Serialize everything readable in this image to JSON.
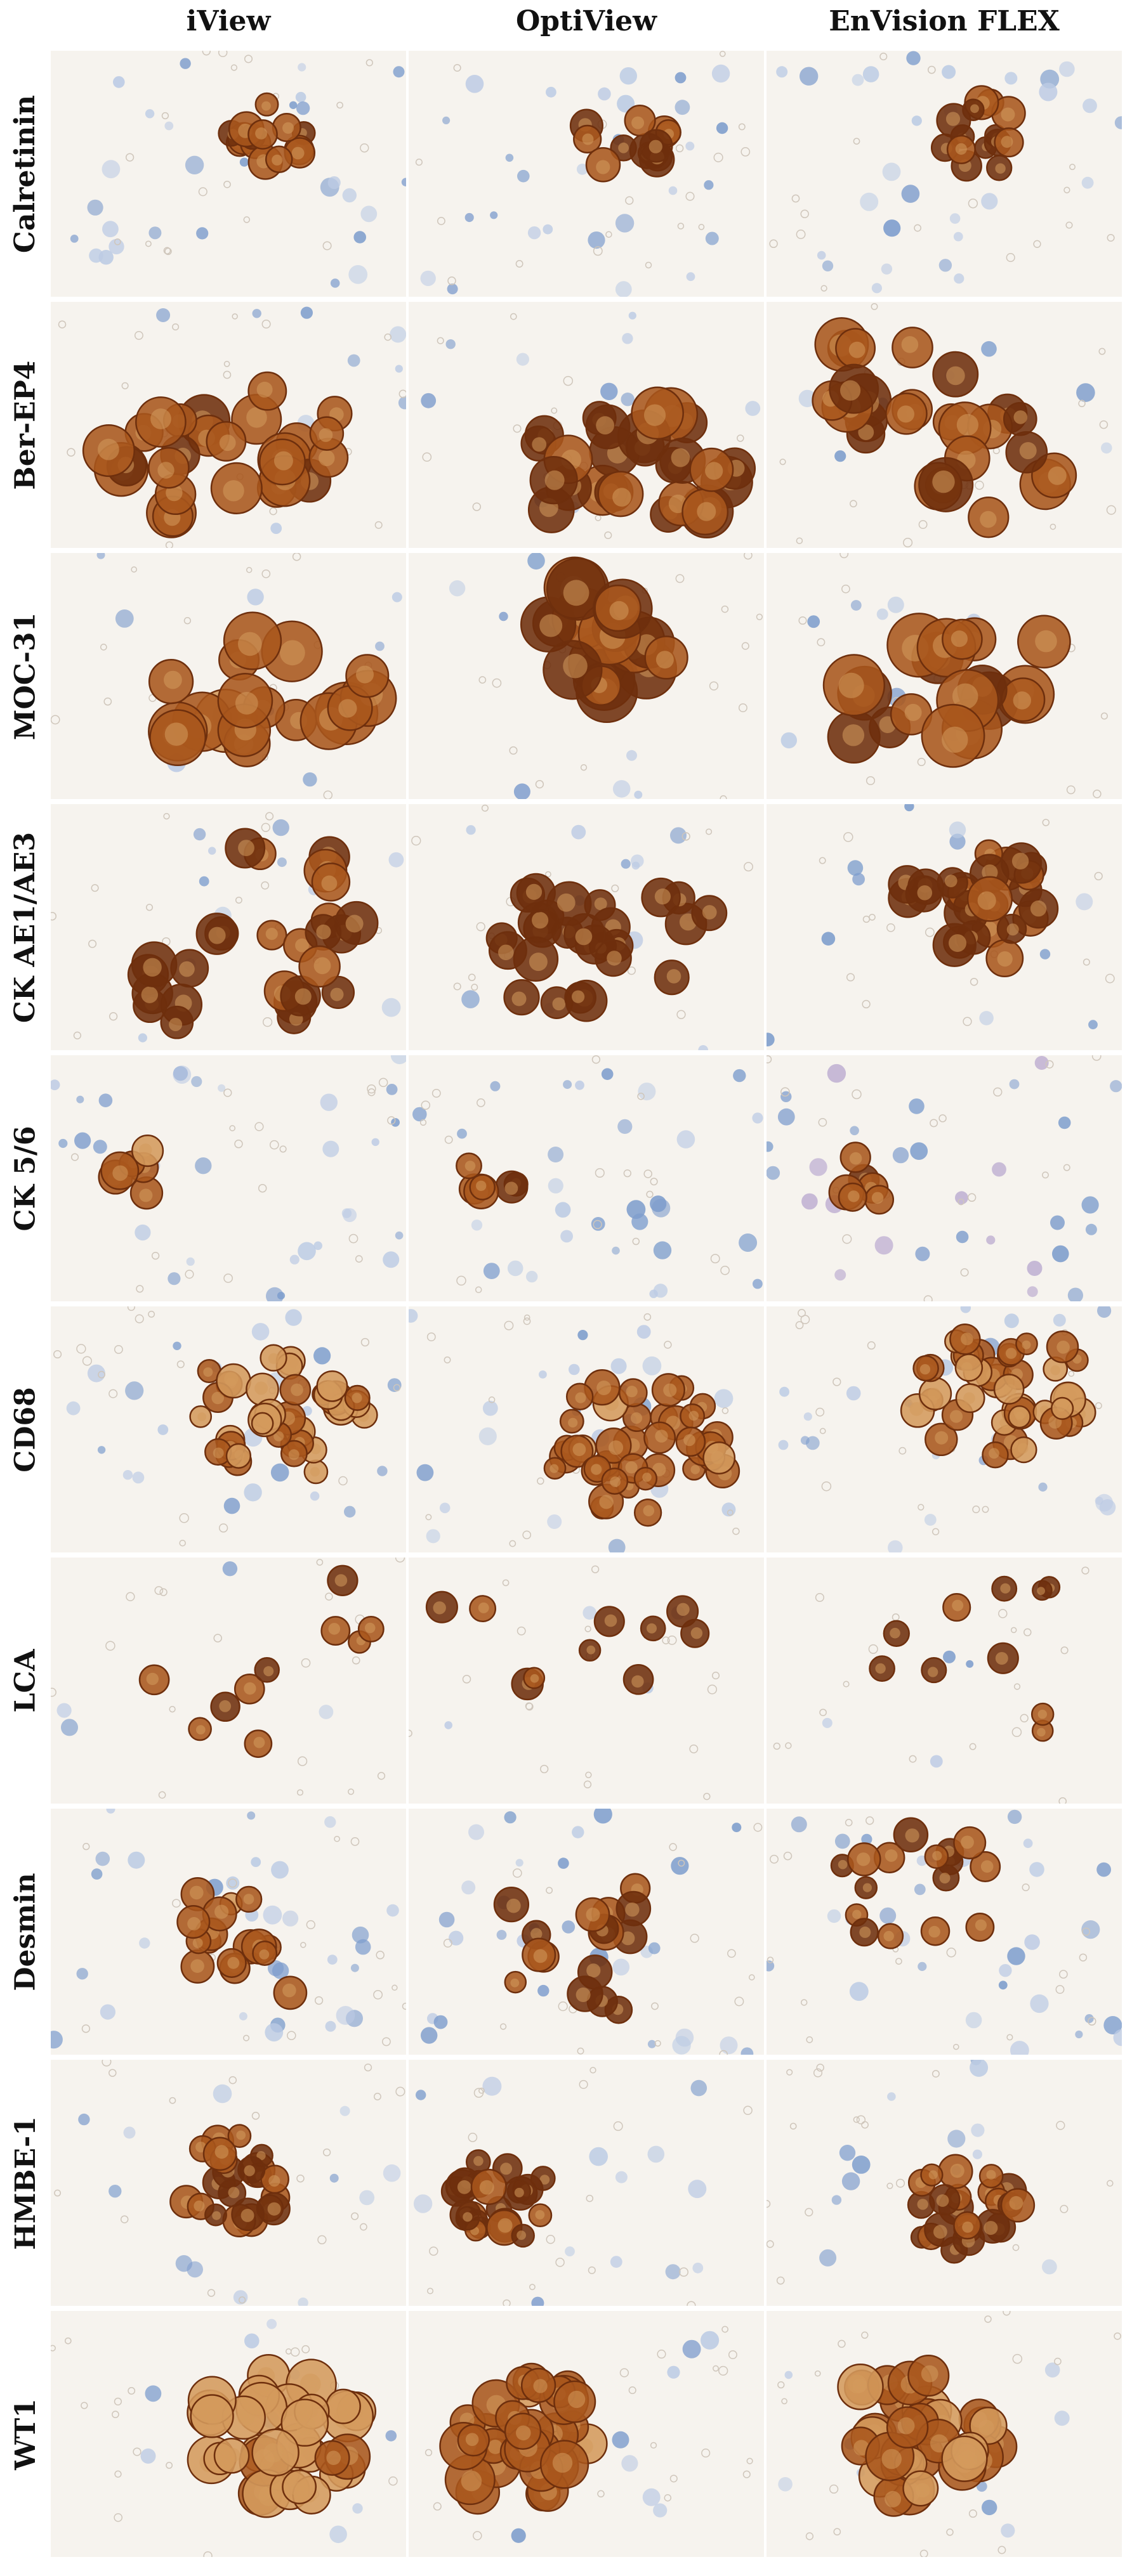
{
  "columns": [
    "iView",
    "OptiView",
    "EnVision FLEX"
  ],
  "rows": [
    "Calretinin",
    "Ber-EP4",
    "MOC-31",
    "CK AE1/AE3",
    "CK 5/6",
    "CD68",
    "LCA",
    "Desmin",
    "HMBE-1",
    "WT1"
  ],
  "colors": {
    "background": "#ffffff",
    "panel_background": "#f6f3ee",
    "stain_dark": "#6e2f0d",
    "stain_mid": "#a8561d",
    "stain_light": "#d49a5c",
    "counterstain_blue": "#7e9dcd",
    "counterstain_pale": "#bccbe4",
    "purple_tint": "#b9a8cf"
  }
}
